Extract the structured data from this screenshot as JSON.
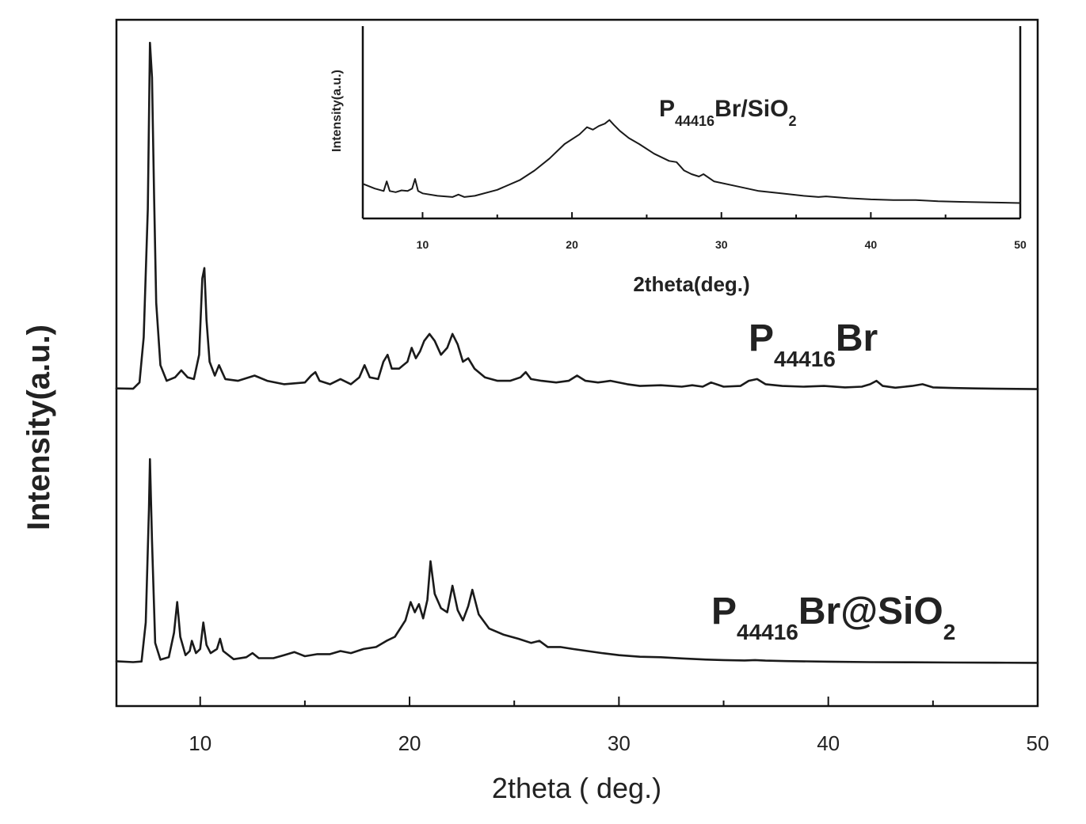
{
  "chart_data": [
    {
      "type": "line",
      "title": "",
      "xlabel": "2theta ( deg.)",
      "ylabel": "Intensity(a.u.)",
      "xlim": [
        6,
        50
      ],
      "xticks": [
        10,
        20,
        30,
        40,
        50
      ],
      "xtick_labels": [
        "10",
        "20",
        "30",
        "40",
        "50"
      ],
      "y_ticks_shown": false,
      "grid": false,
      "series": [
        {
          "label_main": "P",
          "label_sub": "44416",
          "label_rest": "Br",
          "x": [
            6.0,
            6.8,
            7.1,
            7.3,
            7.5,
            7.6,
            7.7,
            7.8,
            7.9,
            8.1,
            8.4,
            8.8,
            9.1,
            9.4,
            9.7,
            9.95,
            10.1,
            10.2,
            10.3,
            10.45,
            10.7,
            10.9,
            11.2,
            11.8,
            12.6,
            13.2,
            14.0,
            15.0,
            15.3,
            15.5,
            15.7,
            16.2,
            16.7,
            17.2,
            17.6,
            17.85,
            18.1,
            18.5,
            18.75,
            18.95,
            19.15,
            19.5,
            19.9,
            20.1,
            20.3,
            20.5,
            20.7,
            20.95,
            21.2,
            21.5,
            21.8,
            22.05,
            22.3,
            22.55,
            22.8,
            23.1,
            23.6,
            24.2,
            24.8,
            25.3,
            25.55,
            25.8,
            26.3,
            27.0,
            27.6,
            28.0,
            28.4,
            29.0,
            29.6,
            30.4,
            31.0,
            32.0,
            33.0,
            33.5,
            34.0,
            34.4,
            35.0,
            35.8,
            36.2,
            36.6,
            37.0,
            37.8,
            38.8,
            39.8,
            40.8,
            41.6,
            42.0,
            42.3,
            42.6,
            43.2,
            44.0,
            44.5,
            45.0,
            46.0,
            47.0,
            48.0,
            49.0,
            50.0
          ],
          "y": [
            0.3,
            0.2,
            2.0,
            15,
            52,
            100,
            90,
            55,
            25,
            7,
            2.5,
            3.5,
            5.5,
            3.5,
            3,
            10,
            32,
            35,
            20,
            8,
            4,
            7,
            3,
            2.5,
            4,
            2.5,
            1.5,
            2,
            4,
            5,
            2.5,
            1.5,
            3,
            1.5,
            3.5,
            7,
            3.5,
            3,
            8,
            10,
            6,
            6,
            8,
            12,
            9,
            11,
            14,
            16,
            14,
            10,
            12,
            16,
            13,
            8,
            9,
            6,
            3.5,
            2.5,
            2.5,
            3.5,
            5,
            3,
            2.5,
            2,
            2.5,
            4,
            2.5,
            2,
            2.5,
            1.5,
            1,
            1.2,
            0.8,
            1.2,
            0.8,
            2,
            0.8,
            1,
            2.5,
            3,
            1.5,
            1,
            0.8,
            1,
            0.6,
            0.8,
            1.5,
            2.5,
            1,
            0.5,
            1,
            1.5,
            0.6,
            0.4,
            0.3,
            0.2,
            0.15,
            0.1
          ]
        },
        {
          "label_main": "P",
          "label_sub": "44416",
          "label_rest": "Br@SiO",
          "label_sub2": "2",
          "x": [
            6.0,
            6.8,
            7.2,
            7.4,
            7.55,
            7.6,
            7.7,
            7.85,
            8.1,
            8.5,
            8.75,
            8.9,
            9.05,
            9.3,
            9.5,
            9.6,
            9.8,
            10.0,
            10.15,
            10.3,
            10.5,
            10.8,
            10.95,
            11.1,
            11.6,
            12.2,
            12.5,
            12.8,
            13.5,
            14.0,
            14.5,
            15.0,
            15.6,
            16.2,
            16.7,
            17.2,
            17.8,
            18.4,
            18.9,
            19.3,
            19.8,
            20.05,
            20.25,
            20.45,
            20.65,
            20.85,
            21.0,
            21.2,
            21.5,
            21.8,
            22.05,
            22.3,
            22.55,
            22.8,
            23.0,
            23.3,
            23.8,
            24.5,
            25.2,
            25.8,
            26.2,
            26.6,
            27.2,
            27.8,
            28.5,
            29.2,
            30.0,
            31.0,
            32.0,
            33.0,
            34.0,
            35.0,
            36.0,
            36.5,
            37.0,
            38.0,
            40.0,
            42.0,
            44.0,
            46.0,
            48.0,
            50.0
          ],
          "y": [
            1.0,
            0.6,
            0.9,
            20,
            75,
            100,
            60,
            10,
            1.8,
            3,
            15,
            30,
            13,
            4,
            6,
            11,
            5,
            7,
            20,
            9,
            5,
            7,
            12,
            6,
            2,
            3,
            5,
            2.5,
            2.5,
            4,
            5.5,
            3.5,
            4.5,
            4.5,
            6,
            5,
            7,
            8,
            11,
            13,
            21,
            30,
            25,
            29,
            22,
            31,
            50,
            34,
            27,
            25,
            38,
            26,
            21,
            28,
            36,
            24,
            17,
            14,
            12,
            10,
            11,
            8,
            8,
            7,
            6,
            5,
            4,
            3.2,
            3,
            2.4,
            1.9,
            1.6,
            1.4,
            1.6,
            1.3,
            1.1,
            0.8,
            0.6,
            0.5,
            0.4,
            0.3,
            0.25
          ]
        }
      ]
    },
    {
      "type": "line",
      "inset": true,
      "title": "",
      "xlabel": "2theta(deg.)",
      "ylabel": "Intensity(a.u.)",
      "xlim": [
        6,
        50
      ],
      "xticks": [
        10,
        20,
        30,
        40,
        50
      ],
      "xtick_labels": [
        "10",
        "20",
        "30",
        "40",
        "50"
      ],
      "y_ticks_shown": false,
      "grid": false,
      "series": [
        {
          "label_main": "P",
          "label_sub": "44416",
          "label_rest": "Br/SiO",
          "label_sub2": "2",
          "x": [
            6.0,
            6.8,
            7.4,
            7.6,
            7.8,
            8.2,
            8.6,
            9.0,
            9.3,
            9.5,
            9.7,
            10.0,
            11.0,
            12.0,
            12.4,
            12.8,
            13.5,
            15.0,
            16.5,
            17.5,
            18.5,
            19.5,
            20.5,
            21.0,
            21.4,
            21.8,
            22.2,
            22.5,
            22.8,
            23.2,
            23.8,
            24.5,
            25.5,
            26.5,
            27.0,
            27.5,
            28.0,
            28.5,
            28.8,
            29.5,
            31.0,
            32.5,
            34.0,
            35.5,
            36.5,
            37.0,
            38.5,
            40.0,
            41.5,
            43.0,
            44.5,
            46.0,
            48.0,
            50.0
          ],
          "y": [
            17,
            13,
            11,
            19,
            11,
            10,
            11.5,
            11,
            13,
            21,
            11,
            9,
            7,
            6,
            8,
            6,
            7,
            12,
            20,
            28,
            38,
            50,
            58,
            64,
            62,
            65,
            67,
            70,
            66,
            61,
            55,
            50,
            42,
            36,
            35,
            28,
            25,
            23,
            25,
            19,
            15,
            11,
            9,
            7,
            6,
            6.5,
            5,
            4,
            3.5,
            3.5,
            2.5,
            2,
            1.5,
            1
          ]
        }
      ]
    }
  ]
}
